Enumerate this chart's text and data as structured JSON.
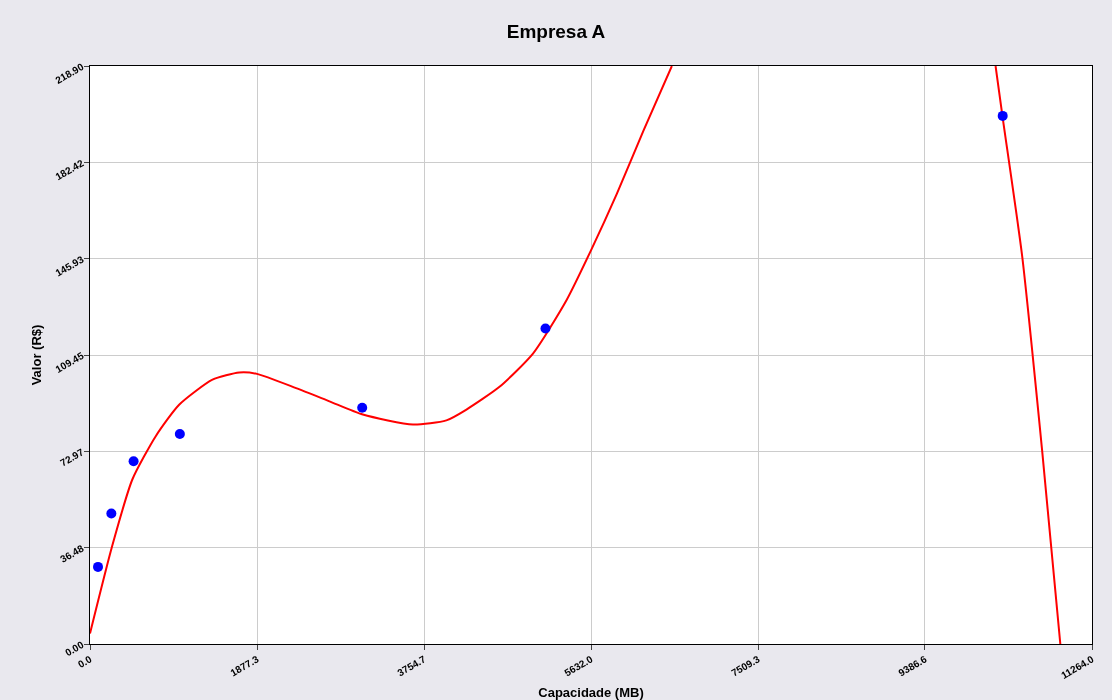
{
  "chart_data": {
    "type": "scatter",
    "title": "Empresa A",
    "xlabel": "Capacidade (MB)",
    "ylabel": "Valor (R$)",
    "xlim": [
      0,
      11264
    ],
    "xticks": [
      {
        "value": 0,
        "label": "0.0"
      },
      1877.3,
      3754.7,
      {
        "value": 5632,
        "label": "5632.0"
      },
      7509.3,
      9386.6,
      {
        "value": 11264,
        "label": "11264.0"
      }
    ],
    "ylim": [
      0,
      218.9
    ],
    "yticks": [
      {
        "value": 0,
        "label": "0.00"
      },
      36.48,
      72.97,
      109.45,
      145.93,
      182.42,
      {
        "value": 218.9,
        "label": "218.90"
      }
    ],
    "grid": true,
    "series": [
      {
        "type": "line",
        "color": "#ff0000",
        "marker": "none",
        "line_style": "solid",
        "x": [
          0,
          250,
          476,
          739,
          1002,
          1377,
          1678,
          1877,
          2317,
          2692,
          3067,
          3630,
          4006,
          4232,
          4607,
          4982,
          5358,
          5632,
          5922,
          6222,
          6541
        ],
        "values": [
          4,
          37.2,
          62.3,
          78.7,
          90.6,
          100.1,
          102.8,
          102.3,
          96.9,
          91.9,
          86.9,
          83.1,
          84.7,
          88.8,
          97.5,
          110.1,
          130.3,
          149.1,
          170.5,
          194.4,
          218.9
        ]
      },
      {
        "type": "line",
        "color": "#ff0000",
        "marker": "none",
        "line_style": "solid",
        "x": [
          10180,
          10257,
          10480,
          10703,
          10908
        ],
        "values": [
          218.9,
          200,
          146.6,
          73.4,
          0
        ]
      },
      {
        "color": "#0000ff",
        "marker": "circle",
        "x": [
          90,
          240,
          490,
          1010,
          3060,
          5120,
          10260
        ],
        "values": [
          29.2,
          49.4,
          69.2,
          79.5,
          89.5,
          119.5,
          200
        ]
      }
    ]
  }
}
